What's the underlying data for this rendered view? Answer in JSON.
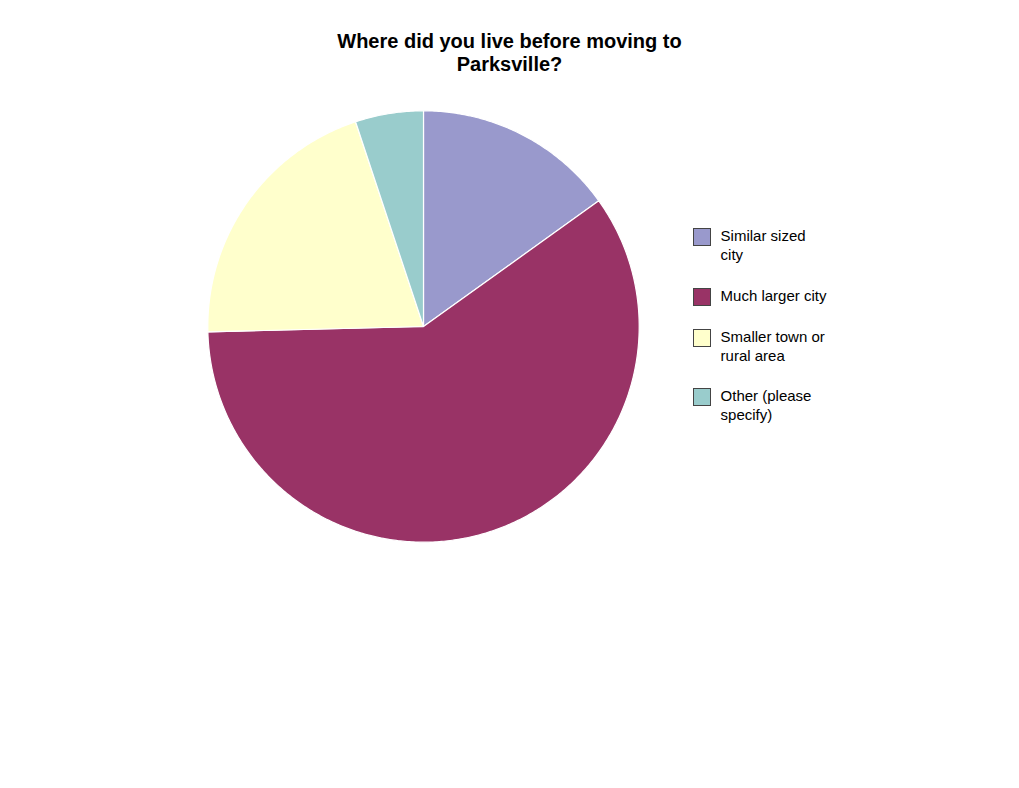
{
  "chart_data": {
    "type": "pie",
    "title": "Where did you live before moving to\nParksville?",
    "categories": [
      "Similar sized\ncity",
      "Much larger city",
      "Smaller town or\nrural area",
      "Other (please\nspecify)"
    ],
    "values": [
      15.1,
      59.5,
      20.3,
      5.1
    ],
    "colors": [
      "#9999CC",
      "#993366",
      "#FFFFCC",
      "#99CCCC"
    ],
    "legend": "right"
  }
}
